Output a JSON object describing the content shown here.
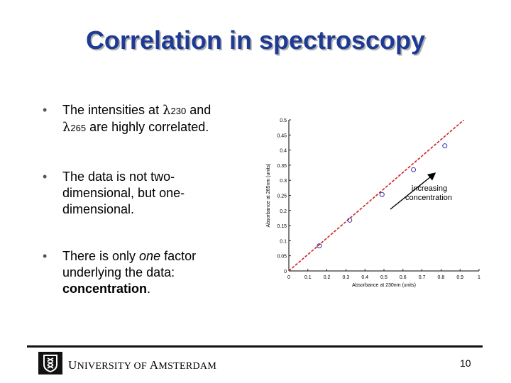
{
  "title": "Correlation in spectroscopy",
  "bullets": {
    "b1": {
      "pre": "The intensities at ",
      "lambda": "λ",
      "sub1": "230",
      "mid": " and ",
      "sub2": "265",
      "post": " are highly correlated."
    },
    "b2": {
      "text": "The data is not two-dimensional, but one-dimensional."
    },
    "b3": {
      "pre": "There is only ",
      "italic": "one",
      "mid": " factor underlying the data: ",
      "bold": "concentration",
      "post": "."
    }
  },
  "footer": {
    "u": "U",
    "niversity": "NIVERSITY OF ",
    "a": "A",
    "msterdam": "MSTERDAM",
    "page": "10"
  },
  "chart_data": {
    "type": "scatter",
    "xlabel": "Absorbance at 230nm (units)",
    "ylabel": "Absorbance at 265nm (units)",
    "xlim": [
      0,
      1
    ],
    "ylim": [
      0,
      0.5
    ],
    "xticks": [
      "0",
      "0.1",
      "0.2",
      "0.3",
      "0.4",
      "0.5",
      "0.6",
      "0.7",
      "0.8",
      "0.9",
      "1"
    ],
    "yticks": [
      "0",
      "0.05",
      "0.1",
      "0.15",
      "0.2",
      "0.25",
      "0.3",
      "0.35",
      "0.4",
      "0.45",
      "0.5"
    ],
    "points": [
      {
        "x": 0.16,
        "y": 0.083
      },
      {
        "x": 0.32,
        "y": 0.168
      },
      {
        "x": 0.49,
        "y": 0.253
      },
      {
        "x": 0.655,
        "y": 0.335
      },
      {
        "x": 0.82,
        "y": 0.414
      }
    ],
    "fit_line": {
      "x": [
        0,
        0.92
      ],
      "y": [
        0,
        0.5
      ]
    },
    "annotation": "increasing concentration",
    "colors": {
      "points": "#3333aa",
      "line": "#d02020",
      "arrow": "#000000"
    }
  }
}
